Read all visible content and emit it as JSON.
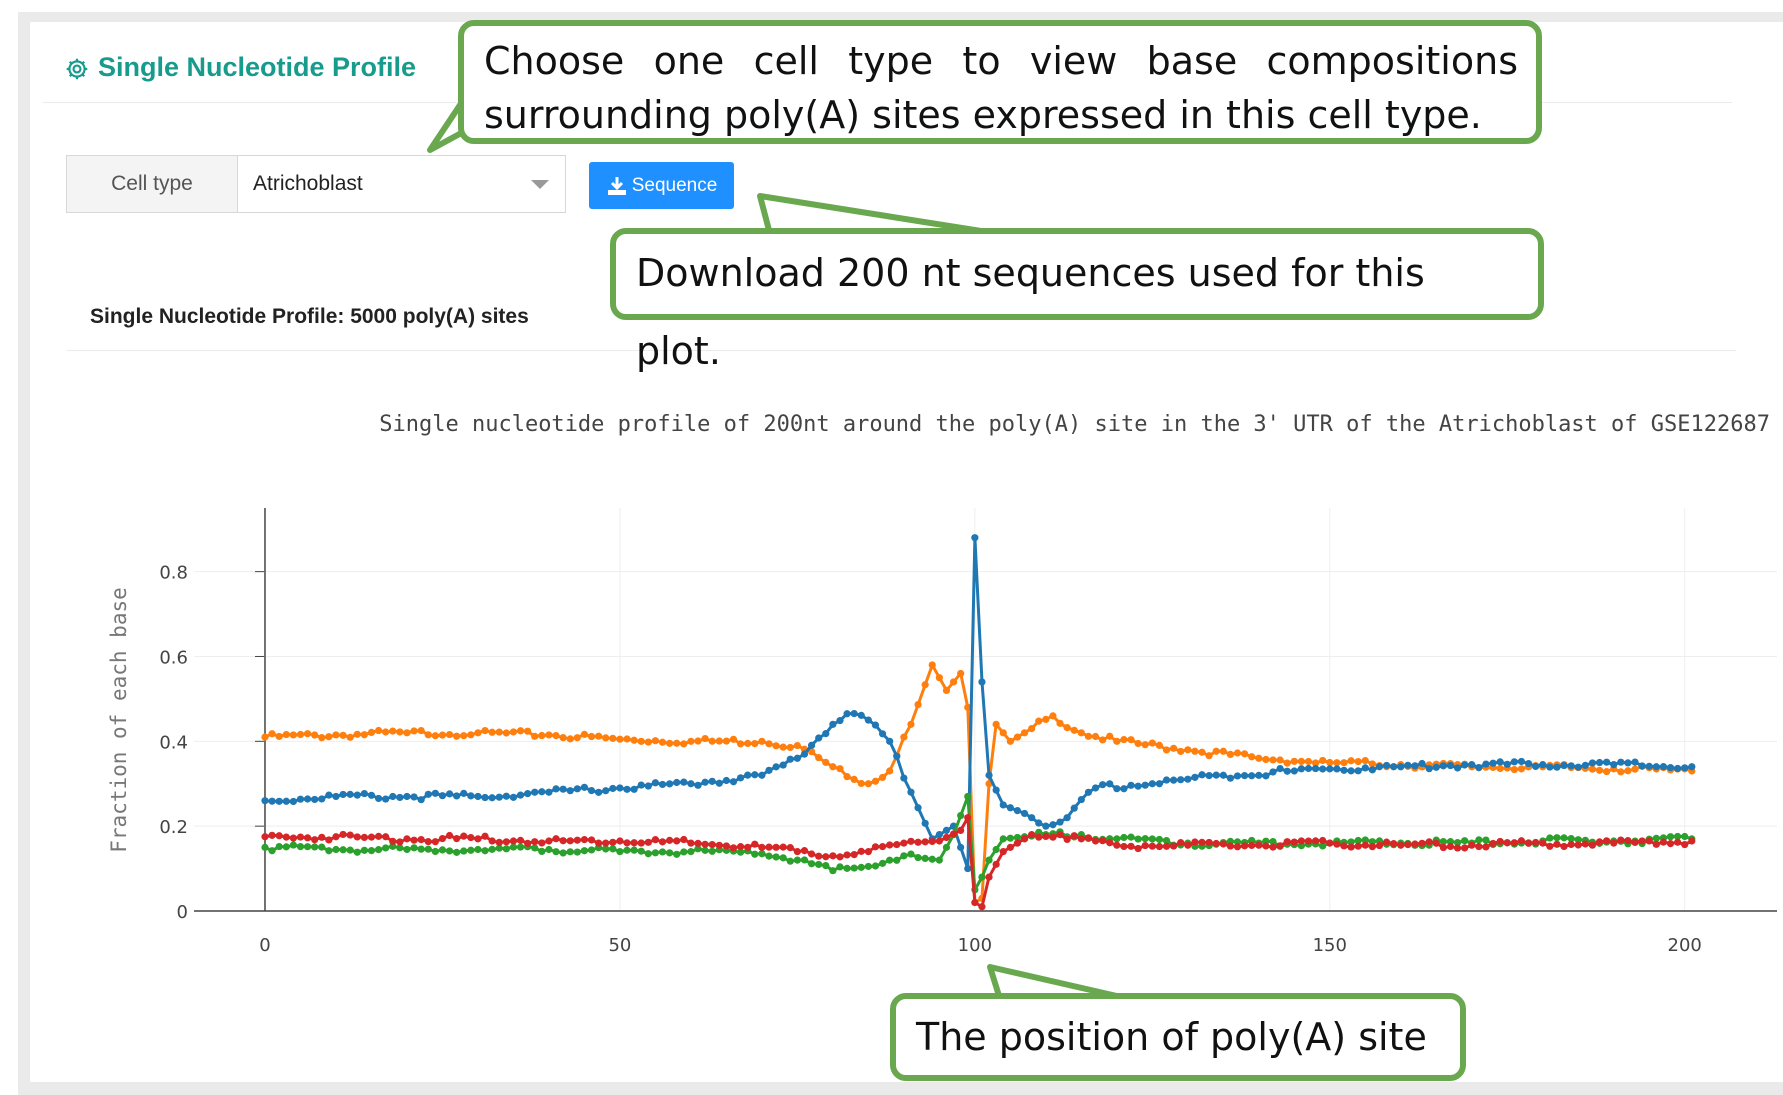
{
  "header": {
    "title": "Single Nucleotide Profile"
  },
  "controls": {
    "cell_type_label": "Cell type",
    "cell_type_value": "Atrichoblast",
    "download_button_label": "Sequence"
  },
  "section": {
    "subtitle": "Single Nucleotide Profile: 5000 poly(A) sites"
  },
  "annotations": {
    "choose_cell_type": "Choose one cell type to view base compositions surrounding poly(A) sites expressed in this cell type.",
    "download_sequences": "Download 200 nt sequences used for this plot.",
    "polya_position": "The position of poly(A) site"
  },
  "colors": {
    "accent": "#169b8c",
    "button": "#1e90ff",
    "callout_border": "#6aa84f"
  },
  "chart_data": {
    "type": "line",
    "title": "Single nucleotide profile of 200nt around the poly(A) site in the 3' UTR of the Atrichoblast of GSE122687",
    "xlabel": "",
    "ylabel": "Fraction of each base",
    "xlim": [
      -10,
      213
    ],
    "ylim": [
      0,
      0.95
    ],
    "xticks": [
      0,
      50,
      100,
      150,
      200
    ],
    "xtick_labels": [
      "0",
      "50",
      "100",
      "150",
      "200"
    ],
    "yticks": [
      0,
      0.2,
      0.4,
      0.6,
      0.8
    ],
    "ytick_labels": [
      "0",
      "0.2",
      "0.4",
      "0.6",
      "0.8"
    ],
    "grid": true,
    "legend": "none",
    "series": [
      {
        "color": "#ff7f0e",
        "points": [
          [
            0,
            0.41
          ],
          [
            10,
            0.415
          ],
          [
            20,
            0.42
          ],
          [
            30,
            0.42
          ],
          [
            40,
            0.415
          ],
          [
            50,
            0.405
          ],
          [
            60,
            0.4
          ],
          [
            70,
            0.4
          ],
          [
            75,
            0.39
          ],
          [
            80,
            0.34
          ],
          [
            85,
            0.3
          ],
          [
            88,
            0.33
          ],
          [
            91,
            0.44
          ],
          [
            94,
            0.58
          ],
          [
            96,
            0.52
          ],
          [
            98,
            0.56
          ],
          [
            99,
            0.48
          ],
          [
            100,
            0.02
          ],
          [
            101,
            0.03
          ],
          [
            102,
            0.3
          ],
          [
            103,
            0.44
          ],
          [
            105,
            0.4
          ],
          [
            108,
            0.43
          ],
          [
            111,
            0.46
          ],
          [
            115,
            0.42
          ],
          [
            120,
            0.4
          ],
          [
            130,
            0.38
          ],
          [
            140,
            0.36
          ],
          [
            150,
            0.35
          ],
          [
            160,
            0.345
          ],
          [
            170,
            0.34
          ],
          [
            180,
            0.34
          ],
          [
            190,
            0.335
          ],
          [
            201,
            0.33
          ]
        ]
      },
      {
        "color": "#1f77b4",
        "points": [
          [
            0,
            0.26
          ],
          [
            10,
            0.27
          ],
          [
            20,
            0.27
          ],
          [
            30,
            0.27
          ],
          [
            40,
            0.28
          ],
          [
            50,
            0.29
          ],
          [
            60,
            0.3
          ],
          [
            70,
            0.32
          ],
          [
            75,
            0.36
          ],
          [
            80,
            0.44
          ],
          [
            82,
            0.465
          ],
          [
            85,
            0.45
          ],
          [
            88,
            0.4
          ],
          [
            91,
            0.28
          ],
          [
            94,
            0.17
          ],
          [
            97,
            0.2
          ],
          [
            99,
            0.1
          ],
          [
            100,
            0.88
          ],
          [
            101,
            0.54
          ],
          [
            102,
            0.32
          ],
          [
            104,
            0.25
          ],
          [
            107,
            0.23
          ],
          [
            110,
            0.2
          ],
          [
            113,
            0.22
          ],
          [
            117,
            0.29
          ],
          [
            125,
            0.3
          ],
          [
            135,
            0.32
          ],
          [
            145,
            0.33
          ],
          [
            150,
            0.335
          ],
          [
            160,
            0.34
          ],
          [
            170,
            0.345
          ],
          [
            180,
            0.345
          ],
          [
            190,
            0.345
          ],
          [
            201,
            0.34
          ]
        ]
      },
      {
        "color": "#2ca02c",
        "points": [
          [
            0,
            0.15
          ],
          [
            10,
            0.145
          ],
          [
            20,
            0.145
          ],
          [
            30,
            0.145
          ],
          [
            40,
            0.145
          ],
          [
            50,
            0.14
          ],
          [
            60,
            0.14
          ],
          [
            70,
            0.135
          ],
          [
            75,
            0.12
          ],
          [
            80,
            0.095
          ],
          [
            85,
            0.105
          ],
          [
            90,
            0.13
          ],
          [
            95,
            0.12
          ],
          [
            97,
            0.18
          ],
          [
            99,
            0.27
          ],
          [
            100,
            0.05
          ],
          [
            101,
            0.08
          ],
          [
            102,
            0.12
          ],
          [
            104,
            0.17
          ],
          [
            110,
            0.18
          ],
          [
            115,
            0.18
          ],
          [
            120,
            0.17
          ],
          [
            130,
            0.16
          ],
          [
            140,
            0.16
          ],
          [
            150,
            0.16
          ],
          [
            160,
            0.16
          ],
          [
            170,
            0.16
          ],
          [
            180,
            0.165
          ],
          [
            190,
            0.165
          ],
          [
            201,
            0.17
          ]
        ]
      },
      {
        "color": "#d62728",
        "points": [
          [
            0,
            0.175
          ],
          [
            10,
            0.175
          ],
          [
            20,
            0.17
          ],
          [
            30,
            0.17
          ],
          [
            40,
            0.165
          ],
          [
            50,
            0.165
          ],
          [
            60,
            0.16
          ],
          [
            70,
            0.15
          ],
          [
            75,
            0.14
          ],
          [
            80,
            0.13
          ],
          [
            85,
            0.14
          ],
          [
            90,
            0.16
          ],
          [
            95,
            0.165
          ],
          [
            98,
            0.19
          ],
          [
            99,
            0.22
          ],
          [
            100,
            0.02
          ],
          [
            101,
            0.01
          ],
          [
            102,
            0.08
          ],
          [
            104,
            0.14
          ],
          [
            108,
            0.18
          ],
          [
            112,
            0.18
          ],
          [
            115,
            0.17
          ],
          [
            120,
            0.155
          ],
          [
            130,
            0.155
          ],
          [
            140,
            0.155
          ],
          [
            150,
            0.16
          ],
          [
            160,
            0.155
          ],
          [
            170,
            0.155
          ],
          [
            180,
            0.16
          ],
          [
            190,
            0.16
          ],
          [
            201,
            0.165
          ]
        ]
      }
    ]
  }
}
